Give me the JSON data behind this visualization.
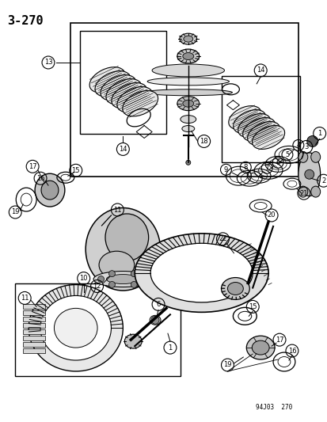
{
  "title": "3-270",
  "footer": "94J03  270",
  "background_color": "#ffffff",
  "text_color": "#000000",
  "line_color": "#000000",
  "figsize": [
    4.14,
    5.33
  ],
  "dpi": 100,
  "page_number": "3-270",
  "doc_ref": "94J03  270"
}
